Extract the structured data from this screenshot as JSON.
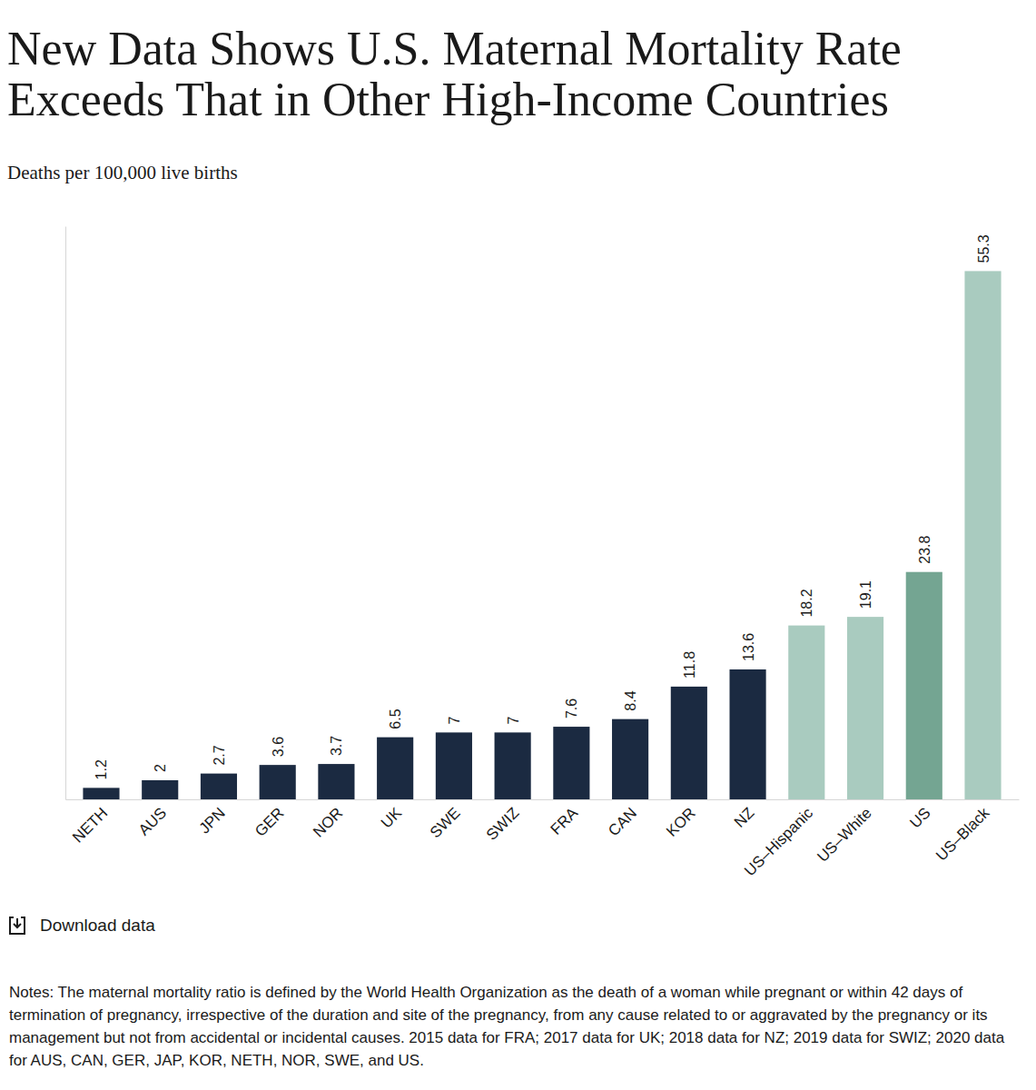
{
  "chart_data": {
    "type": "bar",
    "title": "New Data Shows U.S. Maternal Mortality Rate Exceeds That in Other High-Income Countries",
    "subtitle": "Deaths per 100,000 live births",
    "categories": [
      "NETH",
      "AUS",
      "JPN",
      "GER",
      "NOR",
      "UK",
      "SWE",
      "SWIZ",
      "FRA",
      "CAN",
      "KOR",
      "NZ",
      "US–Hispanic",
      "US–White",
      "US",
      "US–Black"
    ],
    "values": [
      1.2,
      2,
      2.7,
      3.6,
      3.7,
      6.5,
      7,
      7,
      7.6,
      8.4,
      11.8,
      13.6,
      18.2,
      19.1,
      23.8,
      55.3
    ],
    "colors": [
      "#1b2a41",
      "#1b2a41",
      "#1b2a41",
      "#1b2a41",
      "#1b2a41",
      "#1b2a41",
      "#1b2a41",
      "#1b2a41",
      "#1b2a41",
      "#1b2a41",
      "#1b2a41",
      "#1b2a41",
      "#a9cbbf",
      "#a9cbbf",
      "#74a592",
      "#a9cbbf"
    ],
    "ylim": [
      0,
      60
    ],
    "yticks": [],
    "grid": false,
    "data_labels": true,
    "tick_labels": "x",
    "download_label": "Download data",
    "notes": "Notes: The maternal mortality ratio is defined by the World Health Organization as the death of a woman while pregnant or within 42 days of termination of pregnancy, irrespective of the duration and site of the pregnancy, from any cause related to or aggravated by the pregnancy or its management but not from accidental or incidental causes. 2015 data for FRA; 2017 data for UK; 2018 data for NZ; 2019 data for SWIZ; 2020 data for AUS, CAN, GER, JAP, KOR, NETH, NOR, SWE, and US."
  }
}
